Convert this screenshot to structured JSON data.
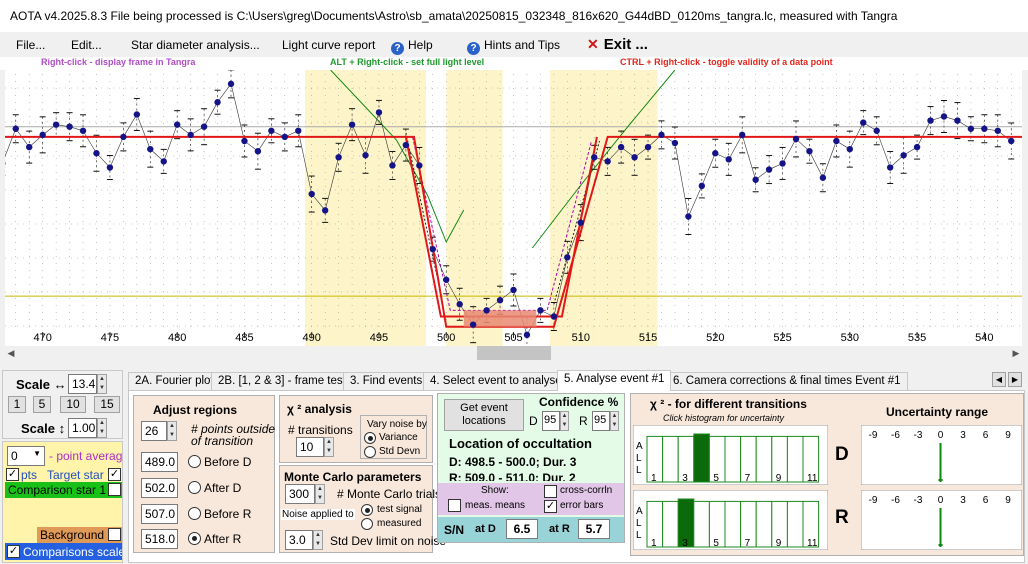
{
  "window": {
    "title": "AOTA v4.2025.8.3    File being processed is C:\\Users\\greg\\Documents\\Astro\\sb_amata\\20250815_032348_816x620_G44dBD_0120ms_tangra.lc, measured with Tangra"
  },
  "menu": {
    "file": "File...",
    "edit": "Edit...",
    "star_diameter": "Star diameter analysis...",
    "light_curve_report": "Light curve report",
    "help": "Help",
    "hints": "Hints and Tips",
    "exit": "Exit ..."
  },
  "hints": {
    "right_click": "Right-click  -  display frame in Tangra",
    "alt_right_click": "ALT + Right-click  -  set full light level",
    "ctrl_right_click": "CTRL + Right-click  -  toggle validity of a data point"
  },
  "colors": {
    "event_band": "#fdf5c9",
    "model_line": "#e01818",
    "data_points": "#141488",
    "chi_line": "#128a12",
    "sn_strip": "#98d3d8"
  },
  "chart_data": {
    "type": "scatter",
    "x_tick_labels": [
      "470",
      "475",
      "480",
      "485",
      "490",
      "495",
      "500",
      "505",
      "510",
      "515",
      "520",
      "525",
      "530",
      "535",
      "540"
    ],
    "xlim": [
      467.2,
      542.8
    ],
    "ylim": [
      0,
      1.22
    ],
    "grid": true,
    "event_bands": [
      [
        489.5,
        498.5
      ],
      [
        500.0,
        504.2
      ],
      [
        507.7,
        511.3
      ],
      [
        511.3,
        515.7
      ]
    ],
    "full_light_level": 1.0,
    "baseline_level": 0.12,
    "series": [
      {
        "type": "scatter",
        "x": [
          467,
          468,
          469,
          470,
          471,
          472,
          473,
          474,
          475,
          476,
          477,
          478,
          479,
          480,
          481,
          482,
          483,
          484,
          485,
          486,
          487,
          488,
          489,
          490,
          491,
          492,
          493,
          494,
          495,
          496,
          497,
          498,
          499,
          500,
          501,
          502,
          503,
          504,
          505,
          506,
          507,
          508,
          509,
          510,
          511,
          512,
          513,
          514,
          515,
          516,
          517,
          518,
          519,
          520,
          521,
          522,
          523,
          524,
          525,
          526,
          527,
          528,
          529,
          530,
          531,
          532,
          533,
          534,
          535,
          536,
          537,
          538,
          539,
          540,
          541,
          542
        ],
        "y": [
          0.87,
          1.04,
          0.95,
          1.01,
          1.06,
          1.05,
          1.03,
          0.92,
          0.85,
          1.0,
          1.11,
          0.94,
          0.88,
          1.06,
          1.01,
          1.05,
          1.17,
          1.26,
          0.98,
          0.93,
          1.03,
          1.0,
          1.03,
          0.72,
          0.64,
          0.9,
          1.06,
          0.91,
          1.12,
          0.86,
          0.96,
          0.86,
          0.45,
          0.3,
          0.18,
          0.08,
          0.15,
          0.2,
          0.25,
          0.03,
          0.15,
          0.12,
          0.41,
          0.58,
          0.9,
          0.88,
          0.95,
          0.9,
          0.95,
          1.01,
          0.97,
          0.61,
          0.76,
          0.92,
          0.89,
          1.01,
          0.79,
          0.84,
          0.87,
          0.99,
          0.93,
          0.8,
          0.98,
          0.94,
          1.07,
          1.03,
          0.85,
          0.91,
          0.95,
          1.08,
          1.1,
          1.08,
          1.04,
          1.04,
          1.03,
          0.98
        ]
      },
      {
        "type": "line",
        "name": "model",
        "x": [
          467,
          497.8,
          500.0,
          500.0,
          504.2,
          504.2,
          507.9,
          511.7,
          542
        ],
        "y": [
          1.0,
          1.0,
          0.2,
          0.12,
          0.12,
          0.12,
          0.12,
          1.0,
          1.0
        ]
      }
    ]
  },
  "scale": {
    "horizontal_label": "Scale ↔",
    "horizontal_value": "13.4",
    "presets": [
      "1",
      "5",
      "10",
      "15"
    ],
    "vertical_label": "Scale ↕",
    "vertical_value": "1.00"
  },
  "left": {
    "points_value": "0",
    "point_average": "- point average",
    "pts": "pts",
    "target_star": "Target star",
    "comparison_star": "Comparison star 1",
    "background": "Background",
    "comparisons_scaled": "Comparisons scaled"
  },
  "tabs": [
    "2A. Fourier plot",
    "2B. [1, 2 & 3] - frame test",
    "3. Find events",
    "4. Select event to analyse",
    "5. Analyse event #1",
    "6. Camera corrections & final times Event #1"
  ],
  "adjust": {
    "title": "Adjust regions",
    "points_value": "26",
    "points_label_1": "# points outside",
    "points_label_2": "of transition",
    "rows": [
      {
        "value": "489.0",
        "label": "Before D"
      },
      {
        "value": "502.0",
        "label": "After D"
      },
      {
        "value": "507.0",
        "label": "Before R"
      },
      {
        "value": "518.0",
        "label": "After R"
      }
    ]
  },
  "chi": {
    "title": "χ ² analysis",
    "transitions_label": "# transitions",
    "transitions_value": "10",
    "vary_noise": "Vary noise by",
    "variance": "Variance",
    "std_devn": "Std Devn"
  },
  "monte": {
    "title": "Monte Carlo parameters",
    "trials_value": "300",
    "trials_label": "# Monte Carlo trials",
    "noise_applied": "Noise applied to",
    "test_signal": "test signal",
    "measured": "measured",
    "std_value": "3.0",
    "std_label": "Std Dev limit on noise"
  },
  "event": {
    "get_event_1": "Get event",
    "get_event_2": "locations",
    "confidence": "Confidence %",
    "d_label": "D",
    "d_value": "95",
    "r_label": "R",
    "r_value": "95",
    "location_title": "Location of occultation",
    "d_line": "D: 498.5 - 500.0; Dur. 3",
    "r_line": "R: 509.0 - 511.0; Dur. 2",
    "show": "Show:",
    "meas_means": "meas. means",
    "cross_corrln": "cross-corrln",
    "error_bars": "error bars",
    "sn": "S/N",
    "at_d": "at D",
    "sn_d": "6.5",
    "at_r": "at R",
    "sn_r": "5.7"
  },
  "chi_hist": {
    "title": "χ ² - for different transitions",
    "subtitle": "Click histogram for uncertainty",
    "all_label": [
      "A",
      "L",
      "L"
    ],
    "d_numbers": [
      "1",
      "3",
      "5",
      "7",
      "9",
      "11"
    ],
    "d_values": [
      0.95,
      0.95,
      0.95,
      1.0,
      0.95,
      0.95,
      0.95,
      0.95,
      0.95,
      0.95,
      0.95
    ],
    "d_selected": 3,
    "r_numbers": [
      "1",
      "3",
      "5",
      "7",
      "9",
      "11"
    ],
    "r_values": [
      0.95,
      0.95,
      1.0,
      0.95,
      0.95,
      0.95,
      0.95,
      0.95,
      0.95,
      0.95,
      0.95
    ],
    "r_selected": 2
  },
  "uncertainty": {
    "title": "Uncertainty range",
    "ticks": [
      "-9",
      "-6",
      "-3",
      "0",
      "3",
      "6",
      "9"
    ],
    "d_label": "D",
    "r_label": "R"
  }
}
